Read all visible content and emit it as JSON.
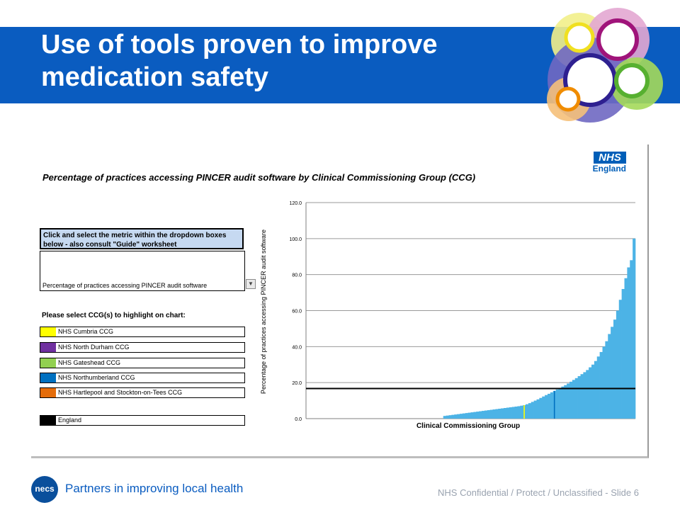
{
  "slide": {
    "title": "Use of tools proven to improve medication safety",
    "tagline": "Partners in improving local health",
    "confidentiality": "NHS Confidential / Protect / Unclassified - Slide 6",
    "footer_logo_text": "necs",
    "accent_color": "#0a5cc0"
  },
  "brand": {
    "nhs_box": "NHS",
    "nhs_word": "England"
  },
  "panel": {
    "heading": "Percentage of practices accessing PINCER audit software by Clinical Commissioning Group (CCG)",
    "instructions": "Click and select the metric within the dropdown boxes below - also consult \"Guide\" worksheet",
    "metric_selected": "Percentage of practices accessing PINCER audit software",
    "select_label": "Please select CCG(s) to highlight on chart:",
    "ccgs": [
      {
        "name": "NHS Cumbria CCG",
        "color": "#ffff00"
      },
      {
        "name": "NHS North Durham CCG",
        "color": "#7030a0"
      },
      {
        "name": "NHS Gateshead CCG",
        "color": "#92d050"
      },
      {
        "name": "NHS Northumberland CCG",
        "color": "#0070c0"
      },
      {
        "name": "NHS Hartlepool and Stockton-on-Tees CCG",
        "color": "#e46c0a"
      },
      {
        "name": "England",
        "color": "#000000"
      }
    ]
  },
  "chart_data": {
    "type": "bar",
    "xlabel": "Clinical Commissioning Group",
    "ylabel": "Percentage of practices accessing PINCER audit software",
    "ylim": [
      0,
      120
    ],
    "yticks": [
      "0.0",
      "20.0",
      "40.0",
      "60.0",
      "80.0",
      "100.0",
      "120.0"
    ],
    "grid": true,
    "bar_color": "#4cb3e6",
    "england_average": 16.7,
    "values": [
      0.0,
      0.0,
      0.0,
      0.0,
      0.0,
      0.0,
      0.0,
      0.0,
      0.0,
      0.0,
      0.0,
      0.0,
      0.0,
      0.0,
      0.0,
      0.0,
      0.0,
      0.0,
      0.0,
      0.0,
      0.0,
      0.0,
      0.0,
      0.0,
      0.0,
      0.0,
      0.0,
      0.0,
      0.0,
      0.0,
      0.0,
      0.0,
      0.0,
      0.0,
      0.0,
      0.0,
      0.0,
      0.0,
      0.0,
      0.0,
      0.0,
      0.0,
      0.0,
      0.0,
      0.0,
      0.0,
      0.0,
      0.0,
      0.0,
      0.0,
      1.5,
      1.7,
      1.9,
      2.1,
      2.3,
      2.5,
      2.7,
      2.9,
      3.1,
      3.3,
      3.5,
      3.7,
      3.9,
      4.1,
      4.3,
      4.5,
      4.7,
      4.9,
      5.1,
      5.3,
      5.5,
      5.7,
      5.9,
      6.1,
      6.3,
      6.5,
      6.7,
      6.9,
      7.2,
      7.5,
      8.0,
      8.6,
      9.3,
      10.0,
      10.7,
      11.5,
      12.3,
      13.1,
      13.8,
      14.6,
      15.4,
      16.2,
      17.0,
      17.8,
      18.6,
      19.5,
      20.5,
      21.5,
      22.5,
      23.6,
      24.7,
      25.8,
      27.0,
      28.5,
      30.0,
      32.0,
      34.5,
      37.0,
      40.0,
      43.0,
      47.0,
      51.0,
      55.0,
      60.0,
      66.0,
      72.0,
      78.0,
      84.0,
      88.0,
      100.0
    ],
    "highlighted": [
      {
        "ccg": "NHS Cumbria CCG",
        "value": 7.5
      },
      {
        "ccg": "NHS Northumberland CCG",
        "value": 15.4
      }
    ]
  }
}
